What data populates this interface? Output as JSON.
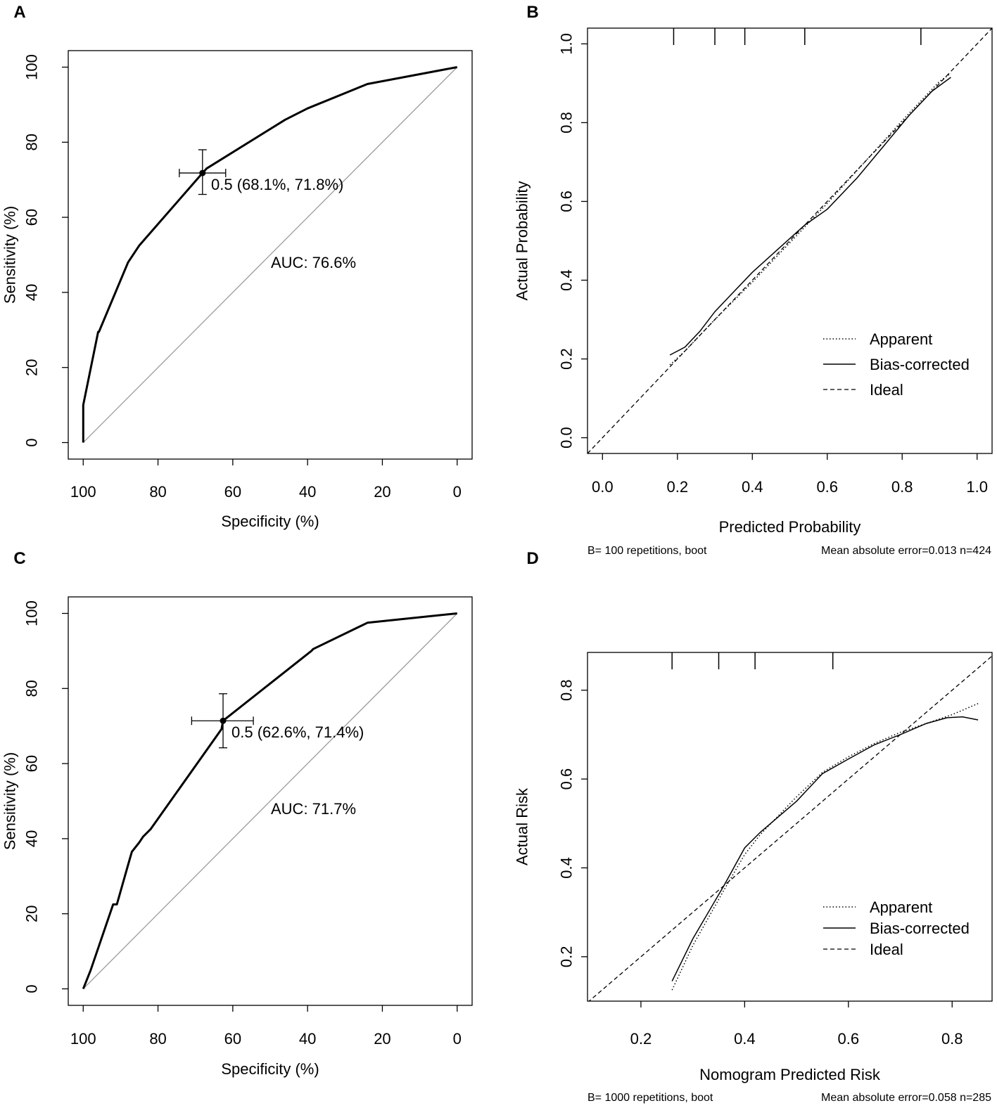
{
  "chart_data": [
    {
      "panel_label": "A",
      "type": "line",
      "subtype": "roc",
      "xlabel": "Specificity (%)",
      "ylabel": "Sensitivity (%)",
      "xlim": [
        104,
        -4
      ],
      "ylim": [
        -4.4,
        104.4
      ],
      "xticks": [
        100,
        80,
        60,
        40,
        20,
        0
      ],
      "yticks": [
        0,
        20,
        40,
        60,
        80,
        100
      ],
      "series": [
        {
          "name": "ROC",
          "x": [
            100,
            100,
            96,
            95.8,
            88,
            85,
            68.1,
            67,
            46,
            40,
            24,
            0
          ],
          "y": [
            0,
            10,
            29.5,
            29.5,
            48,
            52.5,
            71.8,
            73,
            86,
            89,
            95.5,
            100
          ]
        }
      ],
      "diagonal": {
        "x": [
          100,
          0
        ],
        "y": [
          0,
          100
        ]
      },
      "threshold_point": {
        "spec": 68.1,
        "sens": 71.8,
        "spec_ci": [
          74.3,
          61.9
        ],
        "sens_ci": [
          66.1,
          78.0
        ]
      },
      "annotations": {
        "threshold": "0.5 (68.1%, 71.8%)",
        "auc": "AUC: 76.6%"
      }
    },
    {
      "panel_label": "B",
      "type": "line",
      "subtype": "calibration",
      "xlabel": "Predicted Probability",
      "ylabel": "Actual Probability",
      "xlim": [
        -0.04,
        1.04
      ],
      "ylim": [
        -0.04,
        1.04
      ],
      "xticks": [
        0.0,
        0.2,
        0.4,
        0.6,
        0.8,
        1.0
      ],
      "xtick_labels": [
        "0.0",
        "0.2",
        "0.4",
        "0.6",
        "0.8",
        "1.0"
      ],
      "yticks": [
        0.0,
        0.2,
        0.4,
        0.6,
        0.8,
        1.0
      ],
      "ytick_labels": [
        "0.0",
        "0.2",
        "0.4",
        "0.6",
        "0.8",
        "1.0"
      ],
      "rug": [
        0.19,
        0.3,
        0.38,
        0.54,
        0.85
      ],
      "series": [
        {
          "name": "Apparent",
          "x": [
            0.18,
            0.22,
            0.3,
            0.4,
            0.5,
            0.6,
            0.7,
            0.8,
            0.9,
            0.93
          ],
          "y": [
            0.185,
            0.22,
            0.3,
            0.395,
            0.495,
            0.595,
            0.7,
            0.805,
            0.905,
            0.925
          ]
        },
        {
          "name": "Bias-corrected",
          "x": [
            0.18,
            0.22,
            0.26,
            0.3,
            0.34,
            0.4,
            0.47,
            0.54,
            0.6,
            0.68,
            0.75,
            0.82,
            0.88,
            0.93
          ],
          "y": [
            0.21,
            0.23,
            0.27,
            0.32,
            0.36,
            0.42,
            0.48,
            0.54,
            0.58,
            0.66,
            0.74,
            0.82,
            0.88,
            0.915
          ]
        },
        {
          "name": "Ideal",
          "x": [
            -0.04,
            1.04
          ],
          "y": [
            -0.04,
            1.04
          ]
        }
      ],
      "legend": {
        "position": "bottom-right",
        "entries": [
          "Apparent",
          "Bias-corrected",
          "Ideal"
        ]
      },
      "footer_left": "B= 100 repetitions, boot",
      "footer_right": "Mean absolute error=0.013 n=424"
    },
    {
      "panel_label": "C",
      "type": "line",
      "subtype": "roc",
      "xlabel": "Specificity (%)",
      "ylabel": "Sensitivity (%)",
      "xlim": [
        104,
        -4
      ],
      "ylim": [
        -4.4,
        104.4
      ],
      "xticks": [
        100,
        80,
        60,
        40,
        20,
        0
      ],
      "yticks": [
        0,
        20,
        40,
        60,
        80,
        100
      ],
      "series": [
        {
          "name": "ROC",
          "x": [
            100,
            98,
            92,
            91,
            88,
            87,
            85,
            84,
            82,
            63,
            62.6,
            39,
            38.5,
            24,
            0
          ],
          "y": [
            0,
            5,
            22.5,
            22.5,
            33,
            36.5,
            39,
            40.5,
            42.5,
            69.2,
            71.4,
            90,
            90.5,
            97.5,
            100
          ]
        }
      ],
      "diagonal": {
        "x": [
          100,
          0
        ],
        "y": [
          0,
          100
        ]
      },
      "threshold_point": {
        "spec": 62.6,
        "sens": 71.4,
        "spec_ci": [
          71.0,
          54.5
        ],
        "sens_ci": [
          64.2,
          78.6
        ]
      },
      "annotations": {
        "threshold": "0.5 (62.6%, 71.4%)",
        "auc": "AUC: 71.7%"
      }
    },
    {
      "panel_label": "D",
      "type": "line",
      "subtype": "calibration",
      "xlabel": "Nomogram Predicted Risk",
      "ylabel": "Actual Risk",
      "xlim": [
        0.097,
        0.877
      ],
      "ylim": [
        0.1,
        0.885
      ],
      "xticks": [
        0.2,
        0.4,
        0.6,
        0.8
      ],
      "xtick_labels": [
        "0.2",
        "0.4",
        "0.6",
        "0.8"
      ],
      "yticks": [
        0.2,
        0.4,
        0.6,
        0.8
      ],
      "ytick_labels": [
        "0.2",
        "0.4",
        "0.6",
        "0.8"
      ],
      "rug": [
        0.26,
        0.35,
        0.42,
        0.57
      ],
      "series": [
        {
          "name": "Apparent",
          "x": [
            0.26,
            0.3,
            0.36,
            0.4,
            0.43,
            0.5,
            0.55,
            0.6,
            0.65,
            0.7,
            0.75,
            0.8,
            0.85
          ],
          "y": [
            0.125,
            0.225,
            0.35,
            0.43,
            0.475,
            0.56,
            0.615,
            0.65,
            0.68,
            0.705,
            0.725,
            0.745,
            0.77
          ]
        },
        {
          "name": "Bias-corrected",
          "x": [
            0.26,
            0.3,
            0.36,
            0.4,
            0.43,
            0.5,
            0.55,
            0.6,
            0.65,
            0.7,
            0.75,
            0.79,
            0.82,
            0.85
          ],
          "y": [
            0.145,
            0.24,
            0.36,
            0.445,
            0.48,
            0.55,
            0.612,
            0.645,
            0.677,
            0.7,
            0.725,
            0.738,
            0.74,
            0.733
          ]
        },
        {
          "name": "Ideal",
          "x": [
            0.097,
            0.877
          ],
          "y": [
            0.097,
            0.877
          ]
        }
      ],
      "legend": {
        "position": "bottom-right",
        "entries": [
          "Apparent",
          "Bias-corrected",
          "Ideal"
        ]
      },
      "footer_left": "B= 1000 repetitions, boot",
      "footer_right": "Mean absolute error=0.058 n=285"
    }
  ]
}
